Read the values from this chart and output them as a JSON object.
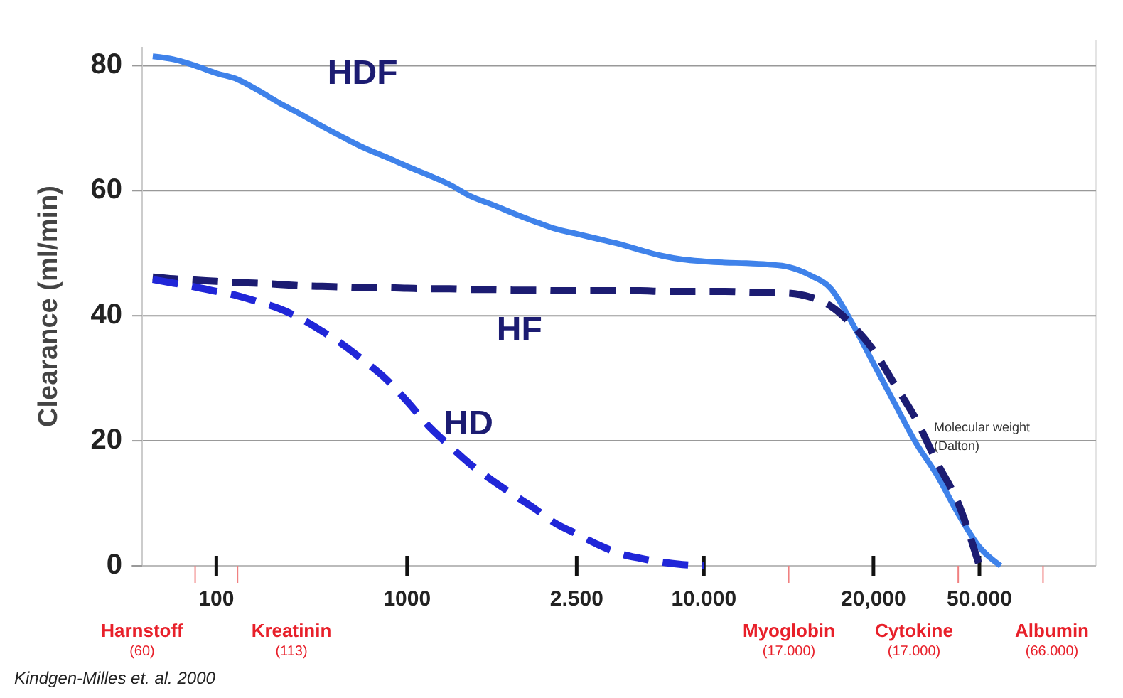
{
  "chart_data": {
    "type": "line",
    "ylabel": "Clearance (ml/min)",
    "ylim": [
      0,
      83
    ],
    "categories": [
      null,
      null,
      null,
      "100",
      null,
      null,
      null,
      null,
      null,
      null,
      null,
      null,
      "1000",
      null,
      null,
      null,
      null,
      null,
      null,
      null,
      "2.500",
      null,
      null,
      null,
      null,
      null,
      "10.000",
      null,
      null,
      null,
      null,
      null,
      null,
      null,
      "20,000",
      null,
      null,
      null,
      null,
      "50.000",
      null,
      null,
      null,
      null,
      null
    ],
    "yticks": [
      0,
      20,
      40,
      60,
      80
    ],
    "grid": "y",
    "series": [
      {
        "name": "HDF",
        "color": "#3f82ea",
        "line_style": "solid",
        "values": [
          81.5,
          81,
          80,
          78.8,
          77.8,
          76,
          74,
          72.2,
          70.3,
          68.5,
          66.8,
          65.4,
          63.9,
          62.5,
          61,
          59.1,
          57.8,
          56.4,
          55.1,
          53.9,
          53.1,
          52.3,
          51.5,
          50.5,
          49.6,
          49.0,
          48.7,
          48.5,
          48.4,
          48.2,
          47.8,
          46.5,
          44.3,
          38.8,
          32.4,
          26,
          19.7,
          14.5,
          8.3,
          3,
          0,
          null,
          null,
          null,
          null
        ]
      },
      {
        "name": "HF",
        "color": "#1c1c72",
        "line_style": "dashed",
        "values": [
          46.2,
          45.9,
          45.7,
          45.5,
          45.3,
          45.2,
          45.0,
          44.8,
          44.7,
          44.6,
          44.5,
          44.5,
          44.4,
          44.3,
          44.3,
          44.2,
          44.2,
          44.1,
          44.1,
          44.0,
          44.0,
          44.0,
          44.0,
          44.0,
          43.9,
          43.9,
          43.9,
          43.9,
          43.8,
          43.7,
          43.6,
          43.0,
          41.5,
          38.5,
          34.5,
          29,
          23.5,
          16.5,
          10,
          0,
          null,
          null,
          null,
          null,
          null
        ]
      },
      {
        "name": "HD",
        "color": "#2026d8",
        "line_style": "dashed",
        "values": [
          45.8,
          45.2,
          44.6,
          43.9,
          43.2,
          42.2,
          41.1,
          39.5,
          37.5,
          35.3,
          32.7,
          29.9,
          26.3,
          22.4,
          19.2,
          16.2,
          13.7,
          11.4,
          9.2,
          6.8,
          5.1,
          3.4,
          2.0,
          1.2,
          0.6,
          0.2,
          0,
          null,
          null,
          null,
          null,
          null,
          null,
          null,
          null,
          null,
          null,
          null,
          null,
          null,
          null,
          null,
          null,
          null,
          null
        ]
      }
    ],
    "annotations": [
      "Harnstoff (60)",
      "Kreatinin (113)",
      "Myoglobin (17.000)",
      "Cytokine (17.000)",
      "Albumin (66.000)",
      "Molecular weight (Dalton)",
      "Kindgen-Milles et. al. 2000"
    ]
  }
}
